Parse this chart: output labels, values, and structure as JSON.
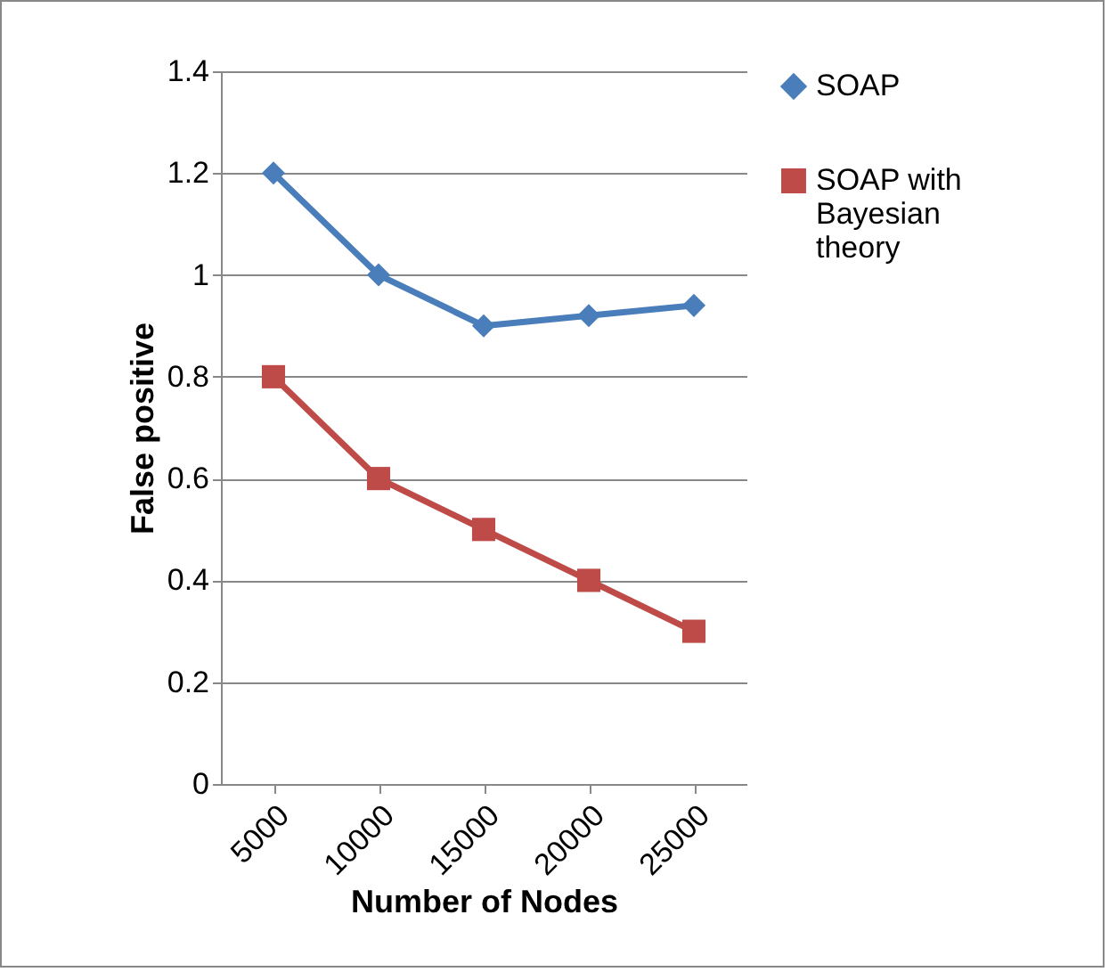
{
  "chart_data": {
    "type": "line",
    "xlabel": "Number of Nodes",
    "ylabel": "False positive",
    "categories": [
      "5000",
      "10000",
      "15000",
      "20000",
      "25000"
    ],
    "series": [
      {
        "name": "SOAP",
        "color": "#4a7ebb",
        "marker": "diamond",
        "values": [
          1.2,
          1.0,
          0.9,
          0.92,
          0.94
        ]
      },
      {
        "name": "SOAP with Bayesian theory",
        "color": "#be4b48",
        "marker": "square",
        "values": [
          0.8,
          0.6,
          0.5,
          0.4,
          0.3
        ]
      }
    ],
    "ylim": [
      0,
      1.4
    ],
    "yticks": [
      0,
      0.2,
      0.4,
      0.6,
      0.8,
      1,
      1.2,
      1.4
    ],
    "grid": "y",
    "legend": "right",
    "line_style": "solid"
  }
}
